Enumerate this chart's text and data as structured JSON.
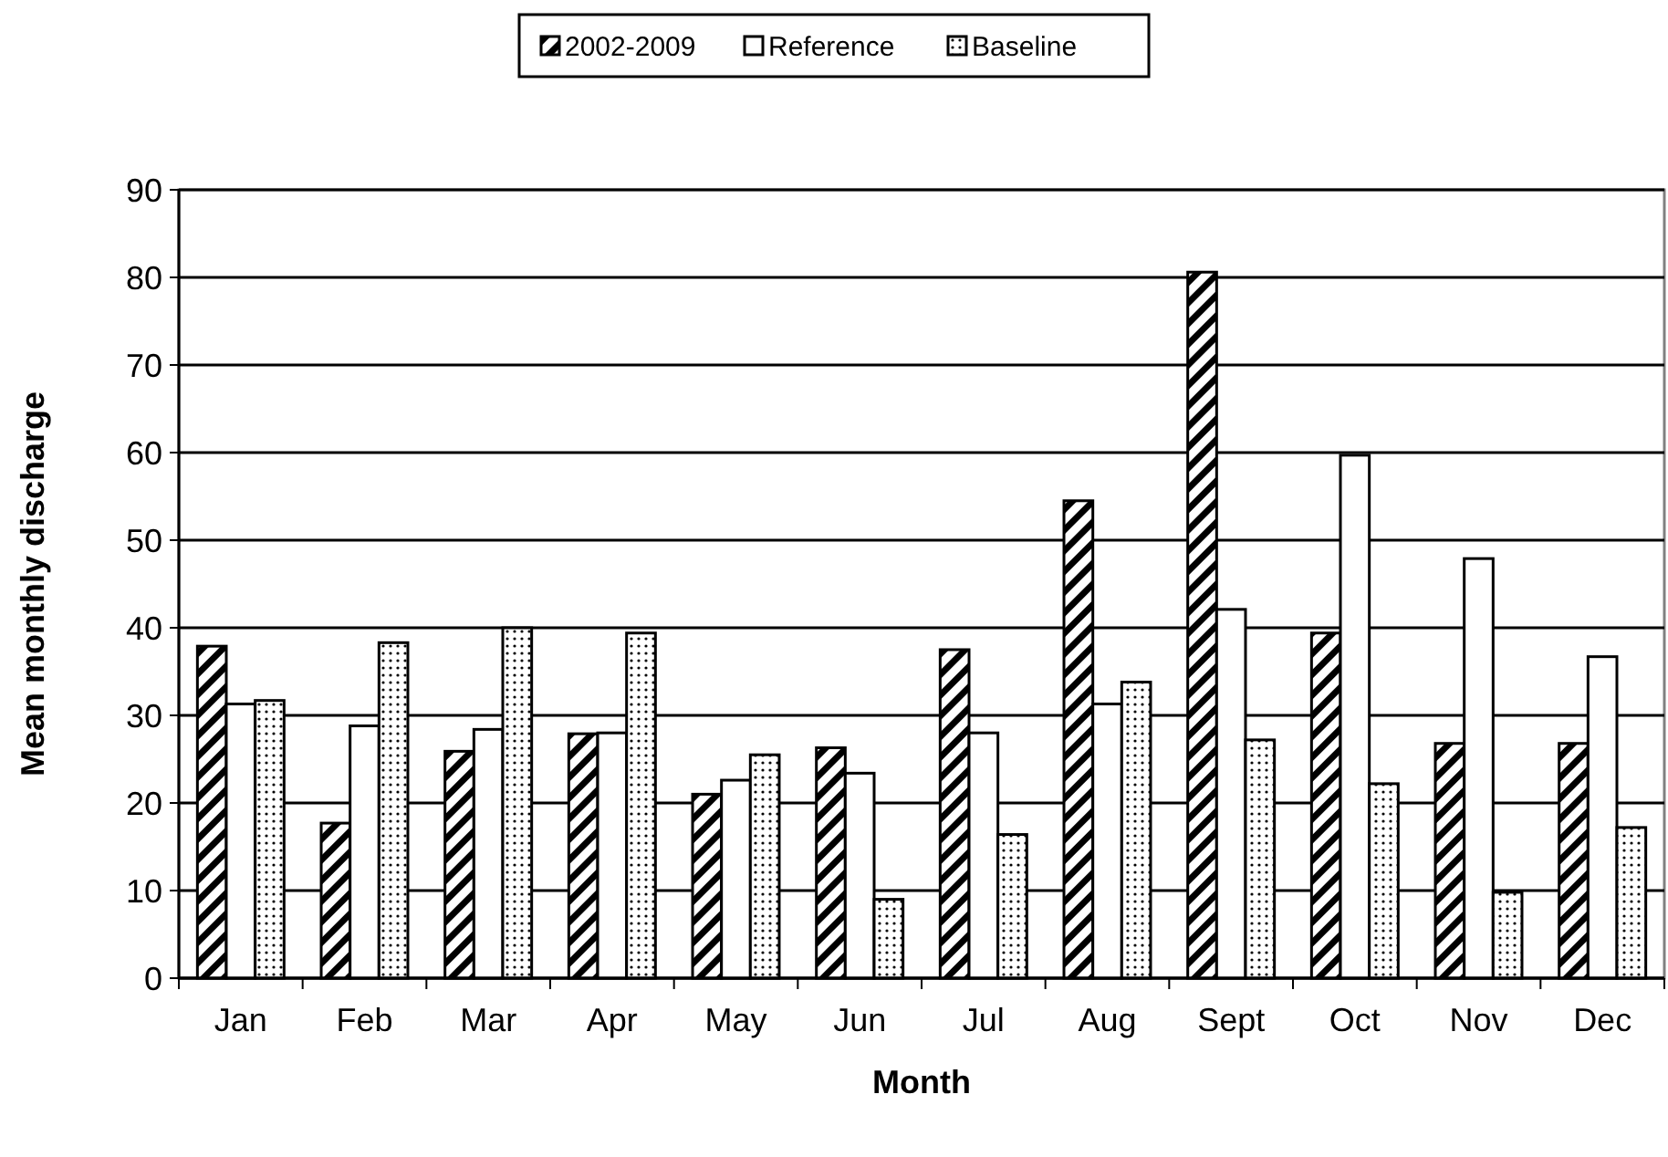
{
  "chart_data": {
    "type": "bar",
    "xlabel": "Month",
    "ylabel": "Mean monthly discharge",
    "categories": [
      "Jan",
      "Feb",
      "Mar",
      "Apr",
      "May",
      "Jun",
      "Jul",
      "Aug",
      "Sept",
      "Oct",
      "Nov",
      "Dec"
    ],
    "series": [
      {
        "name": "2002-2009",
        "color": "#000000",
        "values": [
          37.9,
          17.7,
          25.9,
          27.9,
          21,
          26.3,
          37.5,
          54.5,
          80.6,
          39.4,
          26.8,
          26.8
        ]
      },
      {
        "name": "Reference",
        "color": "#ffffff",
        "values": [
          31.3,
          28.8,
          28.4,
          28,
          22.6,
          23.4,
          28,
          31.3,
          42.1,
          59.7,
          47.9,
          36.7
        ]
      },
      {
        "name": "Baseline",
        "color": "#000000",
        "values": [
          31.7,
          38.3,
          40,
          39.4,
          25.5,
          9,
          16.4,
          33.8,
          27.2,
          22.2,
          9.8,
          17.2
        ]
      }
    ],
    "ylim": [
      0,
      90
    ],
    "yticks": [
      0,
      10,
      20,
      30,
      40,
      50,
      60,
      70,
      80,
      90
    ],
    "grid": "y",
    "legend": "top"
  }
}
